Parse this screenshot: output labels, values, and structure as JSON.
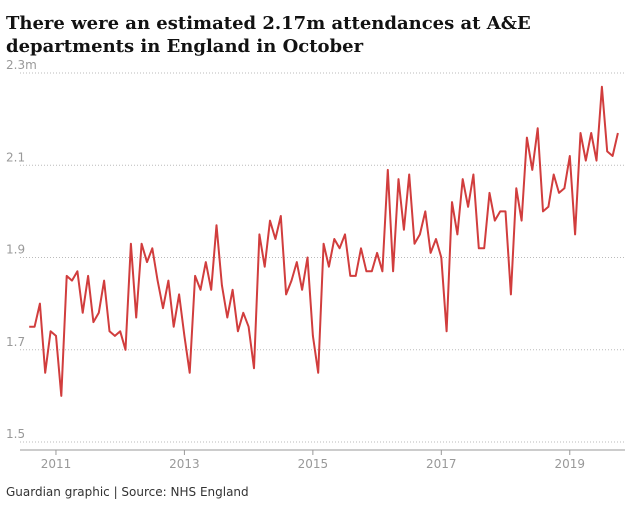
{
  "chart_data": {
    "type": "line",
    "title": "There were an estimated 2.17m attendances at A&E departments in England in October",
    "source": "Guardian graphic | Source: NHS England",
    "x": [
      2010.583,
      2010.667,
      2010.75,
      2010.833,
      2010.917,
      2011.0,
      2011.083,
      2011.167,
      2011.25,
      2011.333,
      2011.417,
      2011.5,
      2011.583,
      2011.667,
      2011.75,
      2011.833,
      2011.917,
      2012.0,
      2012.083,
      2012.167,
      2012.25,
      2012.333,
      2012.417,
      2012.5,
      2012.583,
      2012.667,
      2012.75,
      2012.833,
      2012.917,
      2013.0,
      2013.083,
      2013.167,
      2013.25,
      2013.333,
      2013.417,
      2013.5,
      2013.583,
      2013.667,
      2013.75,
      2013.833,
      2013.917,
      2014.0,
      2014.083,
      2014.167,
      2014.25,
      2014.333,
      2014.417,
      2014.5,
      2014.583,
      2014.667,
      2014.75,
      2014.833,
      2014.917,
      2015.0,
      2015.083,
      2015.167,
      2015.25,
      2015.333,
      2015.417,
      2015.5,
      2015.583,
      2015.667,
      2015.75,
      2015.833,
      2015.917,
      2016.0,
      2016.083,
      2016.167,
      2016.25,
      2016.333,
      2016.417,
      2016.5,
      2016.583,
      2016.667,
      2016.75,
      2016.833,
      2016.917,
      2017.0,
      2017.083,
      2017.167,
      2017.25,
      2017.333,
      2017.417,
      2017.5,
      2017.583,
      2017.667,
      2017.75,
      2017.833,
      2017.917,
      2018.0,
      2018.083,
      2018.167,
      2018.25,
      2018.333,
      2018.417,
      2018.5,
      2018.583,
      2018.667,
      2018.75,
      2018.833,
      2018.917,
      2019.0,
      2019.083,
      2019.167,
      2019.25,
      2019.333,
      2019.417,
      2019.5,
      2019.583,
      2019.667,
      2019.75
    ],
    "series": [
      {
        "color": "#d13d3d",
        "values": [
          1.75,
          1.75,
          1.8,
          1.65,
          1.74,
          1.73,
          1.6,
          1.86,
          1.85,
          1.87,
          1.78,
          1.86,
          1.76,
          1.78,
          1.85,
          1.74,
          1.73,
          1.74,
          1.7,
          1.93,
          1.77,
          1.93,
          1.89,
          1.92,
          1.85,
          1.79,
          1.85,
          1.75,
          1.82,
          1.73,
          1.65,
          1.86,
          1.83,
          1.89,
          1.83,
          1.97,
          1.84,
          1.77,
          1.83,
          1.74,
          1.78,
          1.75,
          1.66,
          1.95,
          1.88,
          1.98,
          1.94,
          1.99,
          1.82,
          1.85,
          1.89,
          1.83,
          1.9,
          1.73,
          1.65,
          1.93,
          1.88,
          1.94,
          1.92,
          1.95,
          1.86,
          1.86,
          1.92,
          1.87,
          1.87,
          1.91,
          1.87,
          2.09,
          1.87,
          2.07,
          1.96,
          2.08,
          1.93,
          1.95,
          2.0,
          1.91,
          1.94,
          1.9,
          1.74,
          2.02,
          1.95,
          2.07,
          2.01,
          2.08,
          1.92,
          1.92,
          2.04,
          1.98,
          2.0,
          2.0,
          1.82,
          2.05,
          1.98,
          2.16,
          2.09,
          2.18,
          2.0,
          2.01,
          2.08,
          2.04,
          2.05,
          2.12,
          1.95,
          2.17,
          2.11,
          2.17,
          2.11,
          2.27,
          2.13,
          2.12,
          2.17
        ]
      }
    ],
    "xlim": [
      2010.44,
      2019.86
    ],
    "xticks": [
      2011,
      2013,
      2015,
      2017,
      2019
    ],
    "ylim": [
      1.5,
      2.3
    ],
    "yticks": [
      1.5,
      1.7,
      1.9,
      2.1,
      {
        "value": 2.3,
        "label": "2.3m"
      }
    ],
    "grid": true
  }
}
